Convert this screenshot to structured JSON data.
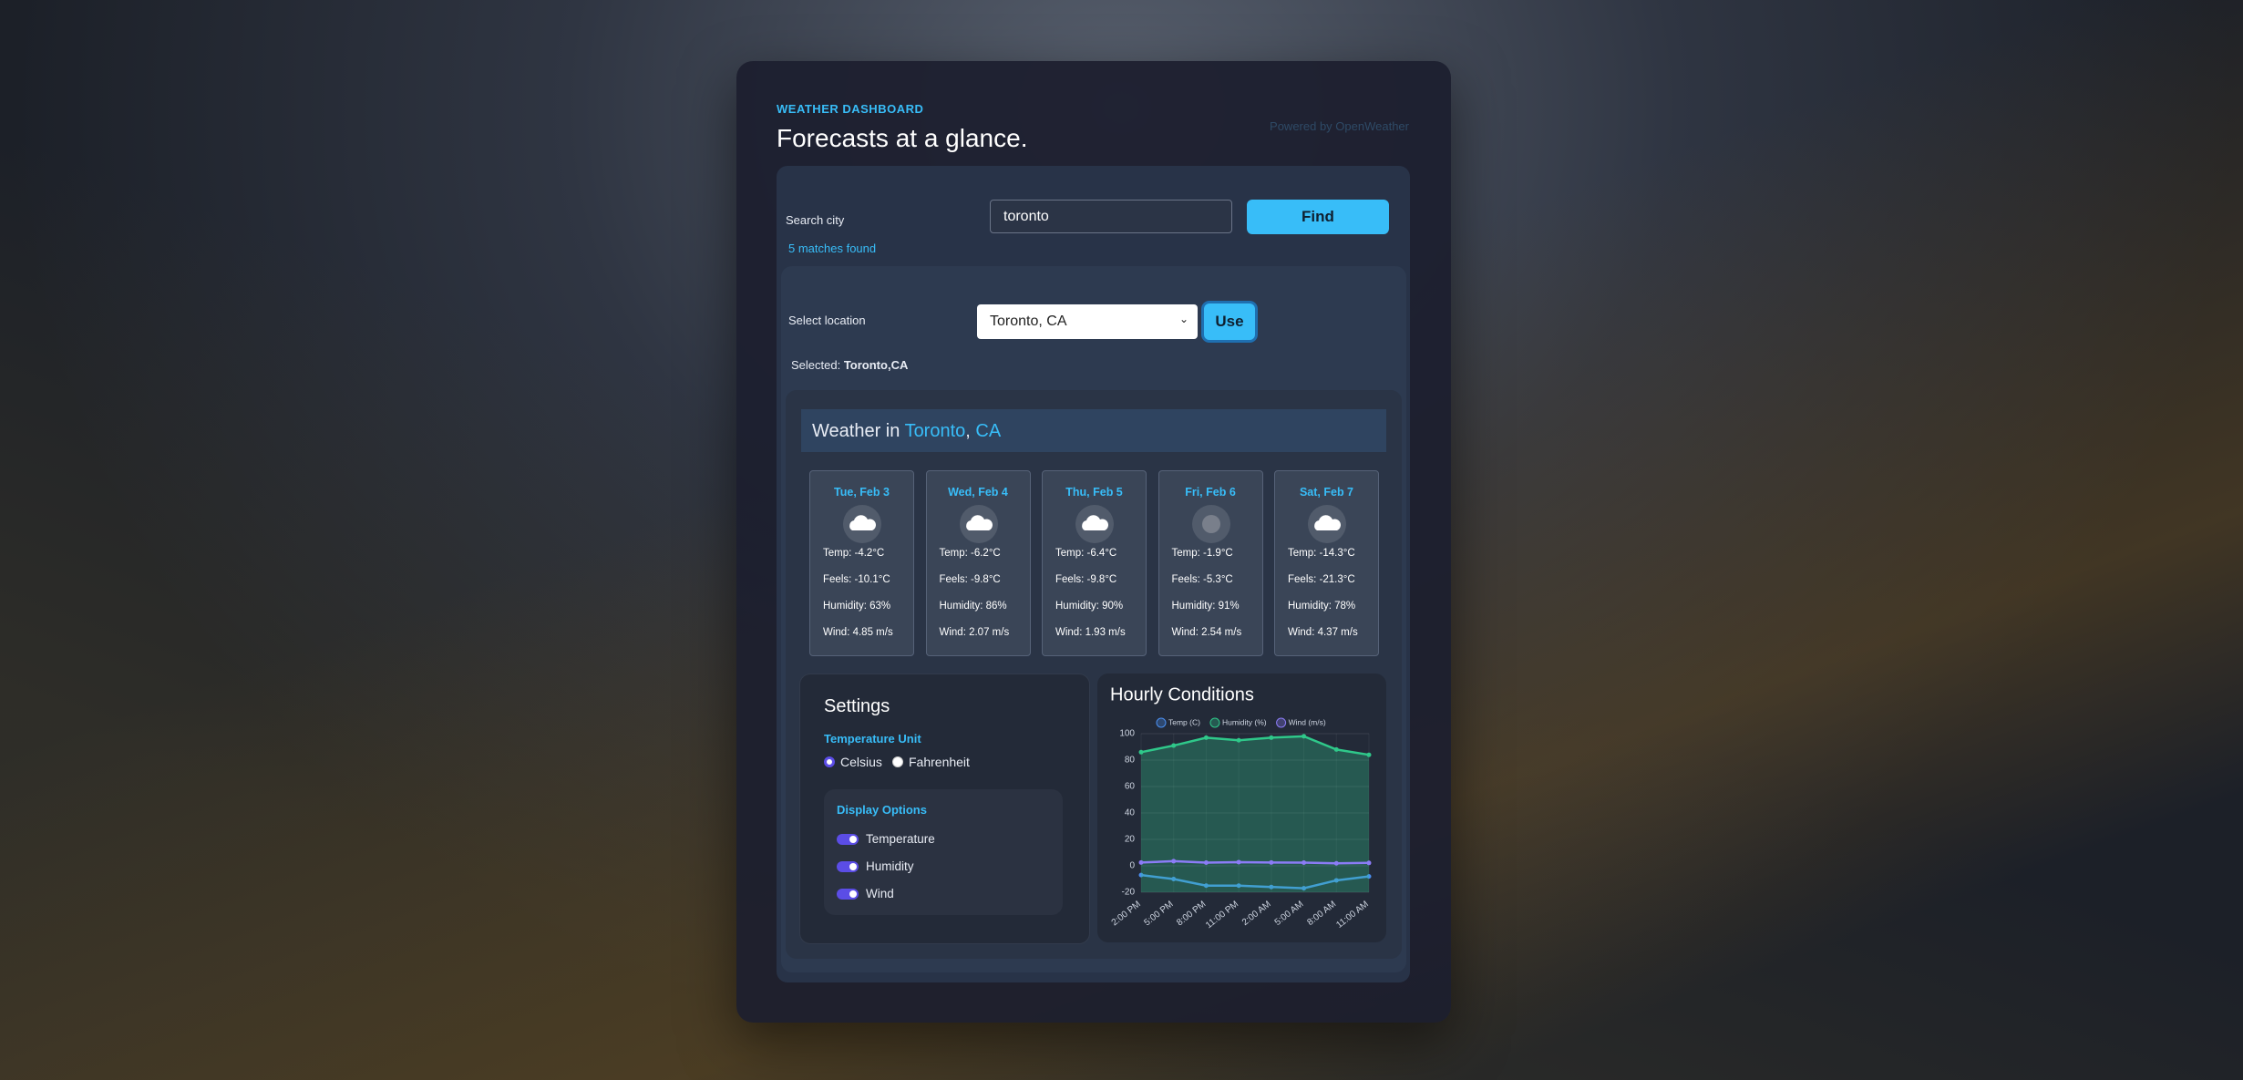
{
  "header": {
    "eyebrow": "WEATHER DASHBOARD",
    "title": "Forecasts at a glance.",
    "powered_by": "Powered by OpenWeather"
  },
  "search": {
    "label": "Search city",
    "query": "toronto",
    "button": "Find",
    "status": "5 matches found"
  },
  "location": {
    "label": "Select location",
    "selection": "Toronto, CA",
    "button": "Use",
    "selected_label": "Selected:",
    "selected_value": "Toronto,CA"
  },
  "weather": {
    "prefix": "Weather in",
    "city": "Toronto",
    "separator": ",",
    "country": "CA",
    "days": [
      {
        "date": "Tue, Feb 3",
        "icon": "cloud",
        "temp": "Temp: -4.2°C",
        "feels": "Feels: -10.1°C",
        "humidity": "Humidity: 63%",
        "wind": "Wind: 4.85 m/s"
      },
      {
        "date": "Wed, Feb 4",
        "icon": "cloud",
        "temp": "Temp: -6.2°C",
        "feels": "Feels: -9.8°C",
        "humidity": "Humidity: 86%",
        "wind": "Wind: 2.07 m/s"
      },
      {
        "date": "Thu, Feb 5",
        "icon": "cloud",
        "temp": "Temp: -6.4°C",
        "feels": "Feels: -9.8°C",
        "humidity": "Humidity: 90%",
        "wind": "Wind: 1.93 m/s"
      },
      {
        "date": "Fri, Feb 6",
        "icon": "fog",
        "temp": "Temp: -1.9°C",
        "feels": "Feels: -5.3°C",
        "humidity": "Humidity: 91%",
        "wind": "Wind: 2.54 m/s"
      },
      {
        "date": "Sat, Feb 7",
        "icon": "cloud",
        "temp": "Temp: -14.3°C",
        "feels": "Feels: -21.3°C",
        "humidity": "Humidity: 78%",
        "wind": "Wind: 4.37 m/s"
      }
    ]
  },
  "settings": {
    "title": "Settings",
    "unit_title": "Temperature Unit",
    "units": [
      "Celsius",
      "Fahrenheit"
    ],
    "checked_unit": 0,
    "display_title": "Display Options",
    "toggles": [
      "Temperature",
      "Humidity",
      "Wind"
    ]
  },
  "hourly_chart": {
    "type": "line",
    "title": "Hourly Conditions",
    "categories": [
      "2:00 PM",
      "5:00 PM",
      "8:00 PM",
      "11:00 PM",
      "2:00 AM",
      "5:00 AM",
      "8:00 AM",
      "11:00 AM"
    ],
    "series": [
      {
        "name": "Temp (C)",
        "color": "#4a8ff0",
        "values": [
          -7,
          -10,
          -15,
          -15,
          -16,
          -17,
          -11,
          -8
        ]
      },
      {
        "name": "Humidity (%)",
        "color": "#2fc88a",
        "values": [
          86,
          91,
          97,
          95,
          97,
          98,
          88,
          84
        ],
        "fill": true
      },
      {
        "name": "Wind (m/s)",
        "color": "#8b7cf6",
        "values": [
          2.5,
          3.5,
          2.4,
          2.8,
          2.5,
          2.4,
          1.9,
          2.2
        ]
      }
    ],
    "ylim": [
      -20,
      100
    ],
    "yticks": [
      -20,
      0,
      20,
      40,
      60,
      80,
      100
    ],
    "grid": true
  }
}
